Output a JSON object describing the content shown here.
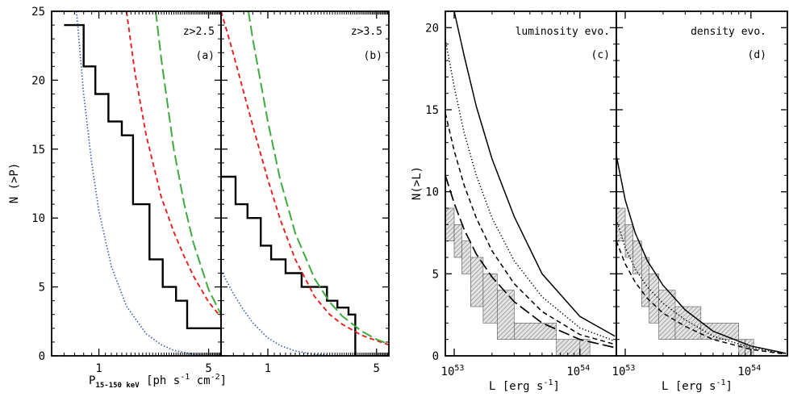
{
  "figure": {
    "left_group": {
      "ylabel": "N (>P)",
      "xlabel_main": "P",
      "xlabel_sub": "15-150 keV",
      "xlabel_unit": "[ph s",
      "xlabel_sup1": "-1",
      "xlabel_unit2": " cm",
      "xlabel_sup2": "-2",
      "xlabel_end": "]"
    },
    "right_group": {
      "ylabel": "N(>L)",
      "xlabel": "L [erg s",
      "xlabel_sup": "-1",
      "xlabel_end": "]"
    }
  },
  "chart_data": [
    {
      "id": "a",
      "type": "line",
      "xscale": "log",
      "xlim": [
        0.5,
        6.0
      ],
      "ylim": [
        0,
        25
      ],
      "annotations": [
        "z>2.5",
        "(a)"
      ],
      "xticklabels": [
        {
          "v": 1,
          "t": "1"
        },
        {
          "v": 5,
          "t": "5"
        }
      ],
      "yticklabels": [
        "0",
        "5",
        "10",
        "15",
        "20",
        "25"
      ],
      "yticks": [
        0,
        5,
        10,
        15,
        20,
        25
      ],
      "series": [
        {
          "style": "step-black",
          "color": "#000000",
          "x": [
            0.6,
            0.8,
            0.8,
            0.95,
            0.95,
            1.15,
            1.15,
            1.4,
            1.4,
            1.65,
            1.65,
            2.1,
            2.1,
            2.55,
            2.55,
            3.1,
            3.1,
            3.65,
            3.65,
            6.0
          ],
          "y": [
            24,
            24,
            21,
            21,
            19,
            19,
            17,
            17,
            16,
            16,
            11,
            11,
            7,
            7,
            5,
            5,
            4,
            4,
            2,
            2
          ]
        },
        {
          "style": "dotted-blue",
          "color": "#3355bb",
          "x": [
            0.72,
            0.8,
            0.9,
            1.0,
            1.2,
            1.5,
            2.0,
            2.5,
            3.0,
            4.0,
            5.0
          ],
          "y": [
            25,
            19,
            14,
            10.5,
            6.5,
            3.6,
            1.6,
            0.8,
            0.4,
            0.12,
            0
          ]
        },
        {
          "style": "dashed-red",
          "color": "#e8201d",
          "x": [
            1.5,
            1.7,
            2.0,
            2.5,
            3.0,
            3.5,
            4.0,
            5.0,
            6.0
          ],
          "y": [
            25,
            20.5,
            16,
            11.5,
            9,
            7.2,
            5.8,
            3.9,
            2.8
          ]
        },
        {
          "style": "longdash-green",
          "color": "#3faa3f",
          "x": [
            2.3,
            2.5,
            3.0,
            3.5,
            4.0,
            5.0,
            6.0
          ],
          "y": [
            25,
            21.5,
            15,
            11,
            8.2,
            4.8,
            3.0
          ]
        }
      ]
    },
    {
      "id": "b",
      "type": "line",
      "xscale": "log",
      "xlim": [
        0.5,
        6.0
      ],
      "ylim": [
        0,
        25
      ],
      "annotations": [
        "z>3.5",
        "(b)"
      ],
      "xticklabels": [
        {
          "v": 1,
          "t": "1"
        },
        {
          "v": 5,
          "t": "5"
        }
      ],
      "yticks": [
        0,
        5,
        10,
        15,
        20,
        25
      ],
      "series": [
        {
          "style": "step-black",
          "color": "#000000",
          "x": [
            0.5,
            0.62,
            0.62,
            0.74,
            0.74,
            0.9,
            0.9,
            1.05,
            1.05,
            1.3,
            1.3,
            1.65,
            1.65,
            2.4,
            2.4,
            2.8,
            2.8,
            3.3,
            3.3,
            3.65,
            3.65
          ],
          "y": [
            13,
            13,
            11,
            11,
            10,
            10,
            8,
            8,
            7,
            7,
            6,
            6,
            5,
            5,
            4,
            4,
            3.5,
            3.5,
            3,
            3,
            0
          ]
        },
        {
          "style": "dotted-blue",
          "color": "#3355bb",
          "x": [
            0.5,
            0.6,
            0.7,
            0.8,
            1.0,
            1.2,
            1.5,
            2.0,
            2.5,
            3.0
          ],
          "y": [
            6.2,
            4.5,
            3.3,
            2.4,
            1.3,
            0.75,
            0.35,
            0.1,
            0.03,
            0
          ]
        },
        {
          "style": "dashed-red",
          "color": "#e8201d",
          "x": [
            0.5,
            0.55,
            0.6,
            0.7,
            0.8,
            1.0,
            1.2,
            1.5,
            2.0,
            2.5,
            3.0,
            4.0,
            5.0,
            6.0
          ],
          "y": [
            25,
            23.4,
            21.9,
            19.1,
            16.7,
            12.8,
            9.9,
            7.0,
            4.3,
            3.0,
            2.3,
            1.5,
            1.1,
            0.8
          ]
        },
        {
          "style": "longdash-green",
          "color": "#3faa3f",
          "x": [
            0.75,
            0.8,
            1.0,
            1.2,
            1.5,
            2.0,
            2.5,
            3.0,
            4.0,
            5.0,
            6.0
          ],
          "y": [
            25,
            23,
            17,
            12.8,
            8.9,
            5.6,
            3.9,
            2.9,
            1.8,
            1.2,
            0.85
          ]
        }
      ]
    },
    {
      "id": "c",
      "type": "line",
      "xscale": "log",
      "xlim": [
        8.5e+52,
        1.95e+54
      ],
      "ylim": [
        0,
        21
      ],
      "annotations": [
        "luminosity evo.",
        "(c)"
      ],
      "xticklabels": [
        {
          "v": 1e+53,
          "m": "10",
          "e": "53"
        },
        {
          "v": 1e+54,
          "m": "10",
          "e": "54"
        }
      ],
      "yticklabels": [
        "0",
        "5",
        "10",
        "15",
        "20"
      ],
      "yticks": [
        0,
        5,
        10,
        15,
        20
      ],
      "series": [
        {
          "style": "solid",
          "color": "#000000",
          "x": [
            1e+53,
            1.2e+53,
            1.5e+53,
            2e+53,
            3e+53,
            5e+53,
            1e+54,
            1.9e+54
          ],
          "y": [
            21,
            18.3,
            15.2,
            12.0,
            8.5,
            5.0,
            2.4,
            1.2
          ]
        },
        {
          "style": "dotted",
          "color": "#000000",
          "x": [
            8.5e+52,
            1e+53,
            1.2e+53,
            1.5e+53,
            2e+53,
            3e+53,
            5e+53,
            1e+54,
            1.9e+54
          ],
          "y": [
            19.3,
            16.4,
            13.6,
            11.0,
            8.4,
            5.8,
            3.6,
            1.7,
            0.9
          ]
        },
        {
          "style": "dashed",
          "color": "#000000",
          "x": [
            8.5e+52,
            1e+53,
            1.2e+53,
            1.5e+53,
            2e+53,
            3e+53,
            5e+53,
            1e+54,
            1.9e+54
          ],
          "y": [
            14.8,
            12.5,
            10.4,
            8.4,
            6.4,
            4.4,
            2.7,
            1.3,
            0.7
          ]
        },
        {
          "style": "longdash",
          "color": "#000000",
          "x": [
            8.5e+52,
            1e+53,
            1.2e+53,
            1.5e+53,
            2e+53,
            3e+53,
            5e+53,
            1e+54,
            1.9e+54
          ],
          "y": [
            11,
            9.3,
            7.7,
            6.2,
            4.8,
            3.3,
            2.0,
            1.0,
            0.5
          ]
        }
      ],
      "bands": [
        {
          "x0": 8.5e+52,
          "x1": 1e+53,
          "y0": 7,
          "y1": 9
        },
        {
          "x0": 1e+53,
          "x1": 1.15e+53,
          "y0": 6,
          "y1": 8
        },
        {
          "x0": 1.15e+53,
          "x1": 1.35e+53,
          "y0": 5,
          "y1": 7
        },
        {
          "x0": 1.35e+53,
          "x1": 1.7e+53,
          "y0": 3,
          "y1": 6
        },
        {
          "x0": 1.7e+53,
          "x1": 2.2e+53,
          "y0": 2,
          "y1": 5
        },
        {
          "x0": 2.2e+53,
          "x1": 3e+53,
          "y0": 1,
          "y1": 4
        },
        {
          "x0": 3e+53,
          "x1": 6.5e+53,
          "y0": 1,
          "y1": 2
        },
        {
          "x0": 6.5e+53,
          "x1": 1e+54,
          "y0": 0,
          "y1": 1
        },
        {
          "x0": 1e+54,
          "x1": 1.2e+54,
          "y0": 0,
          "y1": 1
        }
      ]
    },
    {
      "id": "d",
      "type": "line",
      "xscale": "log",
      "xlim": [
        8.5e+52,
        1.95e+54
      ],
      "ylim": [
        0,
        21
      ],
      "annotations": [
        "density evo.",
        "(d)"
      ],
      "xticklabels": [
        {
          "v": 1e+53,
          "m": "10",
          "e": "53"
        },
        {
          "v": 1e+54,
          "m": "10",
          "e": "54"
        }
      ],
      "yticks": [
        0,
        5,
        10,
        15,
        20
      ],
      "series": [
        {
          "style": "solid",
          "color": "#000000",
          "x": [
            8.5e+52,
            1e+53,
            1.2e+53,
            1.5e+53,
            2e+53,
            3e+53,
            5e+53,
            1e+54,
            1.9e+54
          ],
          "y": [
            12.2,
            9.5,
            7.5,
            5.8,
            4.3,
            2.8,
            1.5,
            0.6,
            0.15
          ]
        },
        {
          "style": "dotted",
          "color": "#000000",
          "x": [
            8.5e+52,
            1e+53,
            1.2e+53,
            1.5e+53,
            2e+53,
            3e+53,
            5e+53,
            1e+54,
            1.9e+54
          ],
          "y": [
            8.3,
            6.6,
            5.3,
            4.2,
            3.2,
            2.2,
            1.2,
            0.5,
            0.12
          ]
        },
        {
          "style": "dashed",
          "color": "#000000",
          "x": [
            8.5e+52,
            1e+53,
            1.2e+53,
            1.5e+53,
            2e+53,
            3e+53,
            5e+53,
            1e+54,
            1.9e+54
          ],
          "y": [
            7.0,
            5.6,
            4.5,
            3.5,
            2.6,
            1.8,
            1.0,
            0.4,
            0.1
          ]
        }
      ],
      "bands": [
        {
          "x0": 8.5e+52,
          "x1": 1e+53,
          "y0": 7,
          "y1": 9
        },
        {
          "x0": 1e+53,
          "x1": 1.15e+53,
          "y0": 6,
          "y1": 8
        },
        {
          "x0": 1.15e+53,
          "x1": 1.35e+53,
          "y0": 5,
          "y1": 7
        },
        {
          "x0": 1.35e+53,
          "x1": 1.55e+53,
          "y0": 3,
          "y1": 6
        },
        {
          "x0": 1.55e+53,
          "x1": 1.85e+53,
          "y0": 2,
          "y1": 5
        },
        {
          "x0": 1.85e+53,
          "x1": 2.5e+53,
          "y0": 1,
          "y1": 4
        },
        {
          "x0": 2.5e+53,
          "x1": 4e+53,
          "y0": 1,
          "y1": 3
        },
        {
          "x0": 4e+53,
          "x1": 8e+53,
          "y0": 1,
          "y1": 2
        },
        {
          "x0": 8e+53,
          "x1": 9e+53,
          "y0": 0,
          "y1": 1
        },
        {
          "x0": 9e+53,
          "x1": 1.05e+54,
          "y0": 0,
          "y1": 1
        }
      ]
    }
  ]
}
